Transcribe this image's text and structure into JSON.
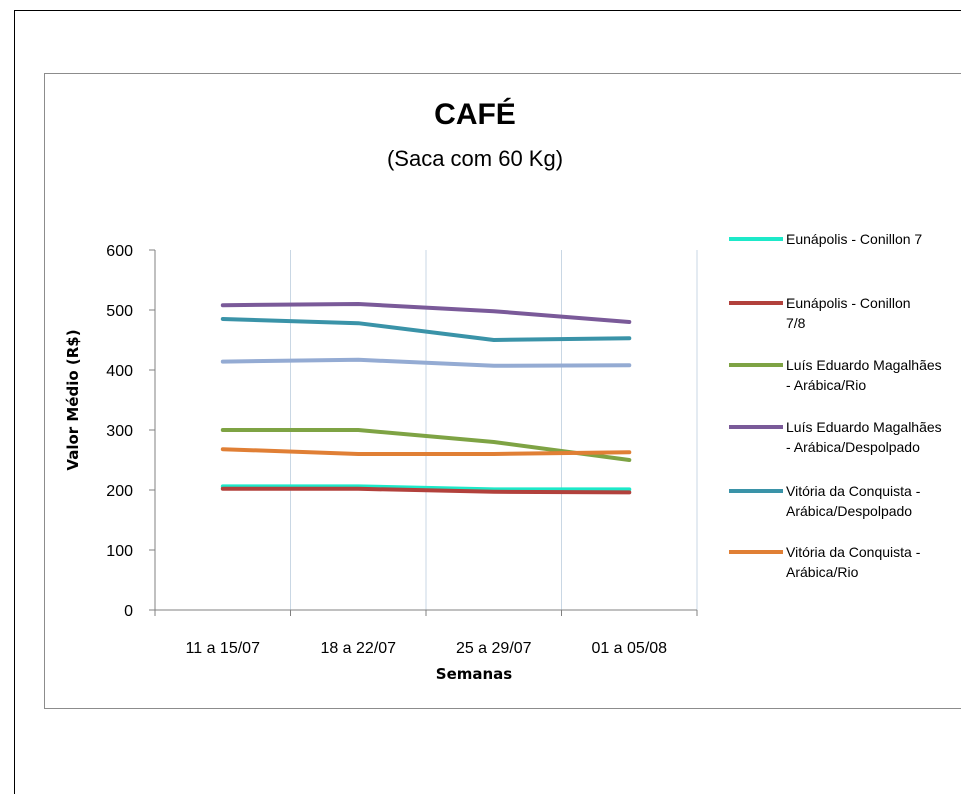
{
  "chart_data": {
    "type": "line",
    "title": "CAFÉ",
    "subtitle": "(Saca com 60 Kg)",
    "xlabel": "Semanas",
    "ylabel": "Valor Médio (R$)",
    "ylim": [
      0,
      600
    ],
    "yticks": [
      "0",
      "100",
      "200",
      "300",
      "400",
      "500",
      "600"
    ],
    "categories": [
      "11 a 15/07",
      "18 a 22/07",
      "25 a 29/07",
      "01 a 05/08"
    ],
    "grid": "vertical",
    "legend_position": "right",
    "series": [
      {
        "name": "Eunápolis - Conillon 7",
        "color": "#1de9c9",
        "values": [
          206,
          206,
          201,
          201
        ],
        "in_legend": true
      },
      {
        "name": "Eunápolis - Conillon 7/8",
        "color": "#b2413c",
        "values": [
          202,
          202,
          197,
          196
        ],
        "in_legend": true
      },
      {
        "name": "Luís Eduardo Magalhães - Arábica/Rio",
        "color": "#7ea344",
        "values": [
          300,
          300,
          280,
          250
        ],
        "in_legend": true
      },
      {
        "name": "Luís Eduardo Magalhães - Arábica/Despolpado",
        "color": "#7a5a99",
        "values": [
          508,
          510,
          498,
          480
        ],
        "in_legend": true
      },
      {
        "name": "Vitória da Conquista - Arábica/Despolpado",
        "color": "#3a93a8",
        "values": [
          485,
          478,
          450,
          453
        ],
        "in_legend": true
      },
      {
        "name": "Vitória da Conquista - Arábica/Rio",
        "color": "#e07f35",
        "values": [
          268,
          260,
          260,
          263
        ],
        "in_legend": true
      },
      {
        "name": "",
        "color": "#94abd3",
        "values": [
          414,
          417,
          407,
          408
        ],
        "in_legend": false
      }
    ]
  }
}
